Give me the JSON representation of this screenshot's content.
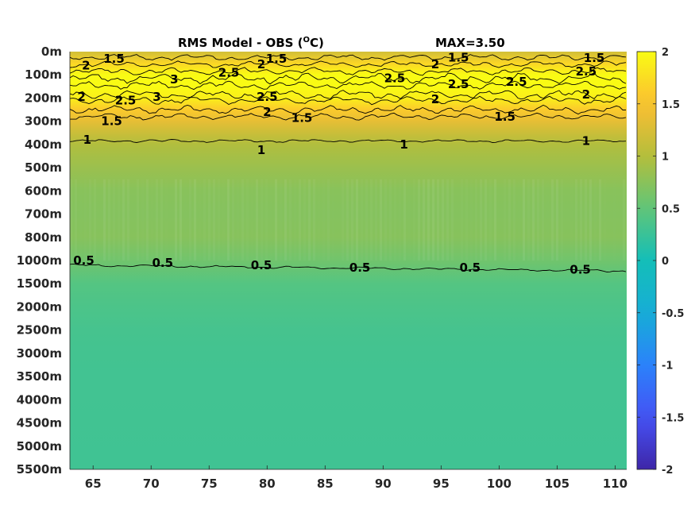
{
  "chart_data": {
    "type": "heatmap",
    "title": "RMS Model - OBS (",
    "title_sup": "O",
    "title_end": "C)",
    "max_label": "MAX=3.50",
    "x_ticks": [
      "65",
      "70",
      "75",
      "80",
      "85",
      "90",
      "95",
      "100",
      "105",
      "110"
    ],
    "x_tick_values": [
      65,
      70,
      75,
      80,
      85,
      90,
      95,
      100,
      105,
      110
    ],
    "x_range": [
      63,
      111
    ],
    "y_ticks": [
      "0m",
      "100m",
      "200m",
      "300m",
      "400m",
      "500m",
      "600m",
      "700m",
      "800m",
      "1000m",
      "1500m",
      "2000m",
      "2500m",
      "3000m",
      "3500m",
      "4000m",
      "4500m",
      "5000m",
      "5500m"
    ],
    "colorbar": {
      "ticks": [
        "2",
        "1.5",
        "1",
        "0.5",
        "0",
        "-0.5",
        "-1",
        "-1.5",
        "-2"
      ],
      "tick_values": [
        2,
        1.5,
        1,
        0.5,
        0,
        -0.5,
        -1,
        -1.5,
        -2
      ],
      "range": [
        -2,
        2
      ],
      "colormap": "parula"
    },
    "depth_profile": [
      {
        "level": 0,
        "value": 1.2
      },
      {
        "level": 0.5,
        "value": 1.7
      },
      {
        "level": 1,
        "value": 2.0
      },
      {
        "level": 1.5,
        "value": 2.0
      },
      {
        "level": 2,
        "value": 1.9
      },
      {
        "level": 2.5,
        "value": 1.6
      },
      {
        "level": 3,
        "value": 1.35
      },
      {
        "level": 3.5,
        "value": 1.15
      },
      {
        "level": 4,
        "value": 0.98
      },
      {
        "level": 5,
        "value": 0.85
      },
      {
        "level": 6,
        "value": 0.74
      },
      {
        "level": 7,
        "value": 0.72
      },
      {
        "level": 8,
        "value": 0.73
      },
      {
        "level": 9,
        "value": 0.6
      },
      {
        "level": 10,
        "value": 0.42
      },
      {
        "level": 11,
        "value": 0.37
      },
      {
        "level": 12,
        "value": 0.33
      },
      {
        "level": 13,
        "value": 0.31
      },
      {
        "level": 14,
        "value": 0.3
      },
      {
        "level": 18,
        "value": 0.29
      }
    ],
    "contour_labels": [
      {
        "text": "1.5",
        "x": 66.8,
        "level": 0.3
      },
      {
        "text": "2",
        "x": 64.4,
        "level": 0.6
      },
      {
        "text": "1.5",
        "x": 80.8,
        "level": 0.3
      },
      {
        "text": "2",
        "x": 79.5,
        "level": 0.55
      },
      {
        "text": "2.5",
        "x": 76.7,
        "level": 0.9
      },
      {
        "text": "1.5",
        "x": 96.5,
        "level": 0.25
      },
      {
        "text": "2",
        "x": 94.5,
        "level": 0.55
      },
      {
        "text": "2.5",
        "x": 91,
        "level": 1.15
      },
      {
        "text": "2.5",
        "x": 96.5,
        "level": 1.4
      },
      {
        "text": "2.5",
        "x": 101.5,
        "level": 1.3
      },
      {
        "text": "1.5",
        "x": 108.2,
        "level": 0.28
      },
      {
        "text": "2.5",
        "x": 107.5,
        "level": 0.85
      },
      {
        "text": "3",
        "x": 72,
        "level": 1.2
      },
      {
        "text": "3",
        "x": 70.5,
        "level": 1.95
      },
      {
        "text": "2.5",
        "x": 67.8,
        "level": 2.1
      },
      {
        "text": "2",
        "x": 64,
        "level": 1.95
      },
      {
        "text": "2.5",
        "x": 80,
        "level": 1.95
      },
      {
        "text": "2",
        "x": 80,
        "level": 2.6
      },
      {
        "text": "1.5",
        "x": 83,
        "level": 2.85
      },
      {
        "text": "2",
        "x": 94.5,
        "level": 2.05
      },
      {
        "text": "1.5",
        "x": 100.5,
        "level": 2.8
      },
      {
        "text": "2",
        "x": 107.5,
        "level": 1.85
      },
      {
        "text": "1.5",
        "x": 66.6,
        "level": 3.0
      },
      {
        "text": "1",
        "x": 64.5,
        "level": 3.8
      },
      {
        "text": "1",
        "x": 79.5,
        "level": 4.25
      },
      {
        "text": "1",
        "x": 91.8,
        "level": 4.0
      },
      {
        "text": "1",
        "x": 107.5,
        "level": 3.85
      },
      {
        "text": "0.5",
        "x": 64.2,
        "level": 9.0
      },
      {
        "text": "0.5",
        "x": 71,
        "level": 9.1
      },
      {
        "text": "0.5",
        "x": 79.5,
        "level": 9.2
      },
      {
        "text": "0.5",
        "x": 88,
        "level": 9.3
      },
      {
        "text": "0.5",
        "x": 97.5,
        "level": 9.3
      },
      {
        "text": "0.5",
        "x": 107,
        "level": 9.4
      }
    ]
  }
}
